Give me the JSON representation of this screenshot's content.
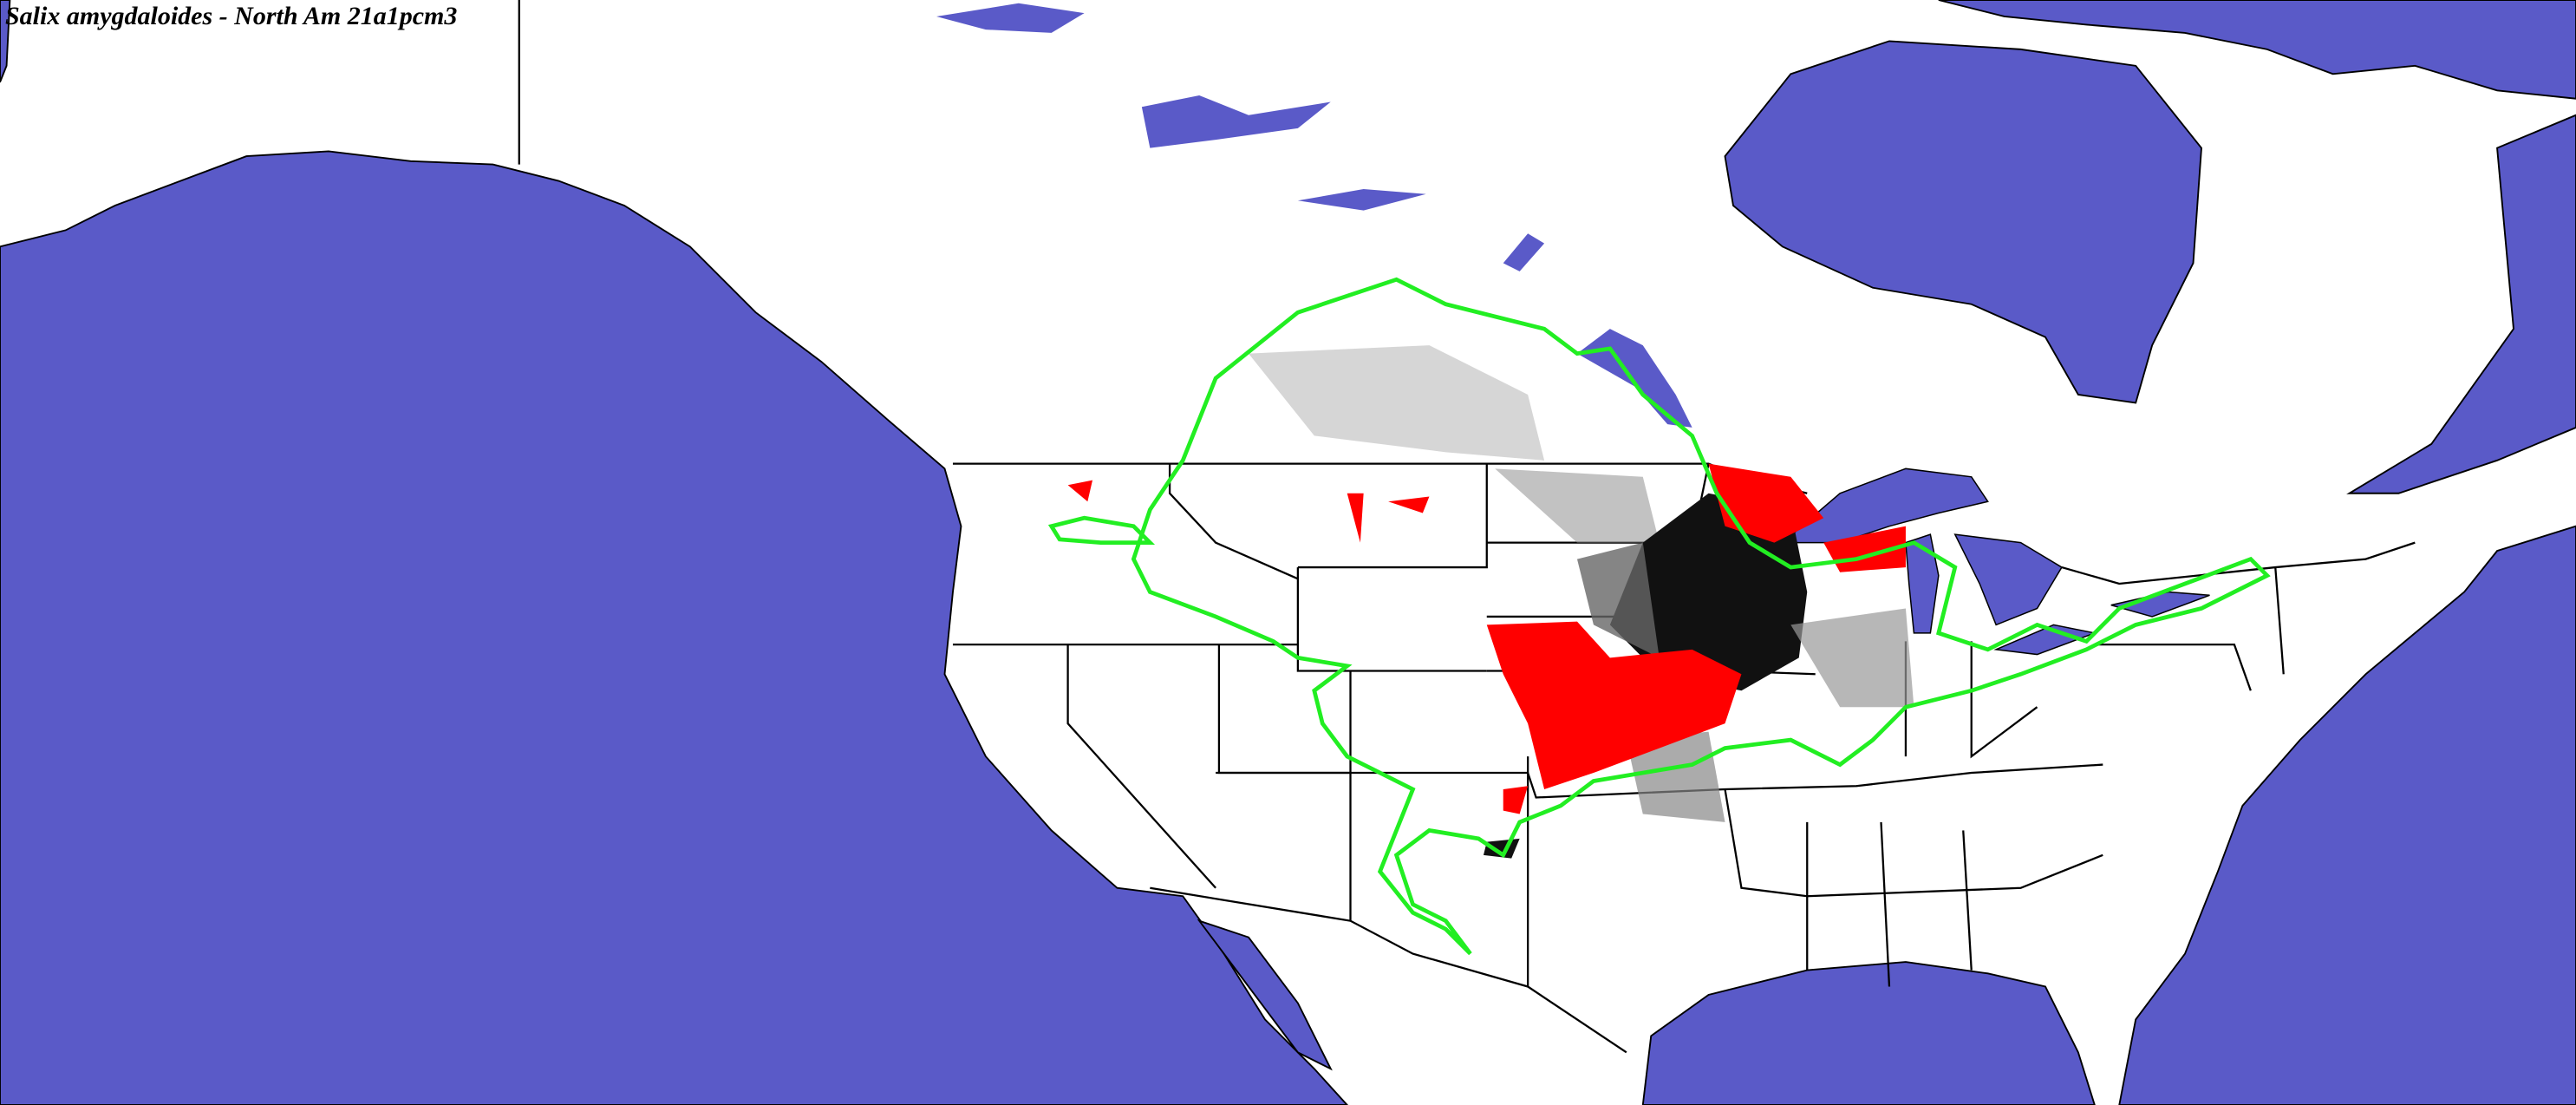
{
  "title": "Salix amygdaloides - North Am 21a1pcm3",
  "colors": {
    "water": "#5a5ac8",
    "land": "#ffffff",
    "boundaries": "#000000",
    "range_outline": "#22ee22",
    "predicted_presence": "#ff0000",
    "suitability_high": "#111111",
    "suitability_low": "#bbbbbb"
  }
}
